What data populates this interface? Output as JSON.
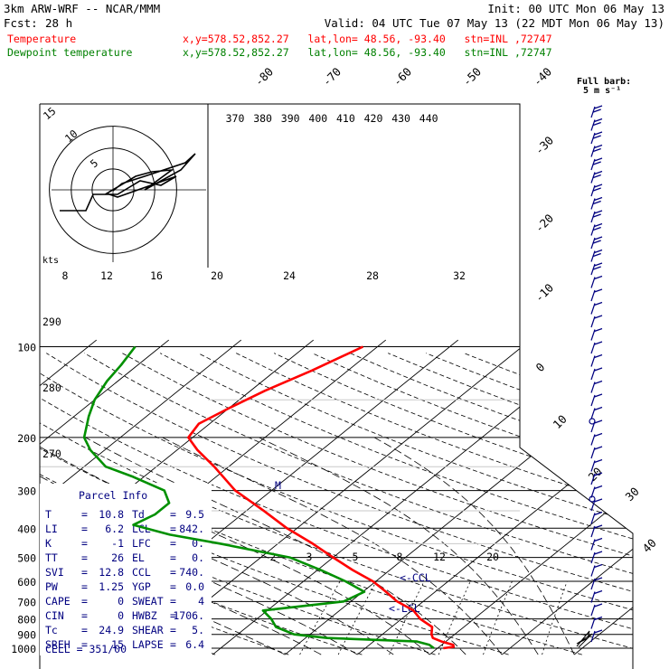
{
  "header": {
    "model": "3km ARW-WRF -- NCAR/MMM",
    "init": "Init: 00 UTC Mon 06 May 13",
    "fcst_label": "Fcst:",
    "fcst_value": "28 h",
    "valid": "Valid: 04 UTC Tue 07 May 13 (22 MDT Mon 06 May 13)"
  },
  "legend": [
    {
      "name": "Temperature",
      "info": "x,y=578.52,852.27   lat,lon= 48.56, -93.40   stn=INL ,72747",
      "color": "#ff0000"
    },
    {
      "name": "Dewpoint temperature",
      "info": "x,y=578.52,852.27   lat,lon= 48.56, -93.40   stn=INL ,72747",
      "color": "#008000"
    }
  ],
  "colors": {
    "temperature": "#ff0000",
    "dewpoint": "#009000",
    "barbs": "#000080",
    "grid": "#000000"
  },
  "chart_data": {
    "type": "line",
    "chart_kind": "skew-T log-P sounding",
    "pressure_levels": [
      "100",
      "200",
      "300",
      "400",
      "500",
      "600",
      "700",
      "800",
      "900",
      "1000"
    ],
    "isotherm_labels": [
      "-80",
      "-70",
      "-60",
      "-50",
      "-40",
      "-30",
      "-20",
      "-10",
      "0",
      "10",
      "20",
      "30",
      "40"
    ],
    "theta_labels": [
      "370",
      "380",
      "390",
      "400",
      "410",
      "420",
      "430",
      "440"
    ],
    "mixing_labels": [
      "2",
      "3",
      "5",
      "8",
      "12",
      "20"
    ],
    "left_labels": [
      "290",
      "280",
      "270"
    ],
    "hodograph": {
      "rings": [
        "5",
        "10",
        "15"
      ],
      "unit": "kts"
    },
    "hodo_axis": [
      "8",
      "12",
      "16",
      "20",
      "24",
      "28",
      "32"
    ],
    "barb_key": {
      "title": "Full barb:",
      "unit": "5 m s⁻¹"
    },
    "annotations": {
      "ccl": "<-CCL",
      "lcl": "<-LCL",
      "m": "M"
    },
    "series": [
      {
        "name": "Temperature",
        "points": [
          {
            "p": 1000,
            "t": 10.8
          },
          {
            "p": 990,
            "t": 12.0
          },
          {
            "p": 975,
            "t": 11.6
          },
          {
            "p": 950,
            "t": 9.4
          },
          {
            "p": 925,
            "t": 7.6
          },
          {
            "p": 900,
            "t": 6.8
          },
          {
            "p": 850,
            "t": 5.6
          },
          {
            "p": 800,
            "t": 2.6
          },
          {
            "p": 750,
            "t": 0.2
          },
          {
            "p": 700,
            "t": -3.6
          },
          {
            "p": 650,
            "t": -6.8
          },
          {
            "p": 600,
            "t": -10.4
          },
          {
            "p": 550,
            "t": -15.2
          },
          {
            "p": 500,
            "t": -20.0
          },
          {
            "p": 450,
            "t": -25.2
          },
          {
            "p": 400,
            "t": -31.4
          },
          {
            "p": 350,
            "t": -37.6
          },
          {
            "p": 300,
            "t": -45.0
          },
          {
            "p": 250,
            "t": -52.0
          },
          {
            "p": 220,
            "t": -57.2
          },
          {
            "p": 200,
            "t": -60.6
          },
          {
            "p": 180,
            "t": -61.5
          },
          {
            "p": 160,
            "t": -60.0
          },
          {
            "p": 140,
            "t": -58.0
          },
          {
            "p": 120,
            "t": -55.0
          },
          {
            "p": 100,
            "t": -52.0
          }
        ]
      },
      {
        "name": "Dewpoint temperature",
        "points": [
          {
            "p": 1000,
            "t": 9.5
          },
          {
            "p": 975,
            "t": 8.3
          },
          {
            "p": 950,
            "t": 6.0
          },
          {
            "p": 925,
            "t": -7.0
          },
          {
            "p": 900,
            "t": -12.2
          },
          {
            "p": 850,
            "t": -16.0
          },
          {
            "p": 800,
            "t": -18.0
          },
          {
            "p": 750,
            "t": -20.6
          },
          {
            "p": 700,
            "t": -11.0
          },
          {
            "p": 650,
            "t": -9.8
          },
          {
            "p": 600,
            "t": -14.2
          },
          {
            "p": 550,
            "t": -19.6
          },
          {
            "p": 500,
            "t": -26.0
          },
          {
            "p": 450,
            "t": -38.0
          },
          {
            "p": 420,
            "t": -46.5
          },
          {
            "p": 390,
            "t": -53.2
          },
          {
            "p": 360,
            "t": -52.0
          },
          {
            "p": 330,
            "t": -52.0
          },
          {
            "p": 300,
            "t": -54.8
          },
          {
            "p": 270,
            "t": -61.5
          },
          {
            "p": 250,
            "t": -67.0
          },
          {
            "p": 220,
            "t": -72.0
          },
          {
            "p": 200,
            "t": -75.0
          },
          {
            "p": 170,
            "t": -78.0
          },
          {
            "p": 150,
            "t": -80.0
          },
          {
            "p": 130,
            "t": -81.5
          },
          {
            "p": 115,
            "t": -82.3
          },
          {
            "p": 100,
            "t": -83.5
          }
        ]
      }
    ]
  },
  "parcel_info": {
    "title": "Parcel Info",
    "rows": [
      {
        "k1": "T",
        "v1": "10.8",
        "k2": "Td",
        "v2": "9.5"
      },
      {
        "k1": "LI",
        "v1": "6.2",
        "k2": "LCL",
        "v2": "842."
      },
      {
        "k1": "K",
        "v1": "-1",
        "k2": "LFC",
        "v2": "0."
      },
      {
        "k1": "TT",
        "v1": "26",
        "k2": "EL",
        "v2": "0."
      },
      {
        "k1": "SVI",
        "v1": "12.8",
        "k2": "CCL",
        "v2": "740."
      },
      {
        "k1": "PW",
        "v1": "1.25",
        "k2": "YGP",
        "v2": "0.0"
      },
      {
        "k1": "CAPE",
        "v1": "0",
        "k2": "SWEAT",
        "v2": "4"
      },
      {
        "k1": "CIN",
        "v1": "0",
        "k2": "HWBZ",
        "v2": "1706."
      },
      {
        "k1": "Tc",
        "v1": "24.9",
        "k2": "SHEAR",
        "v2": "5."
      },
      {
        "k1": "SREH",
        "v1": "15",
        "k2": "LAPSE",
        "v2": "6.4"
      }
    ],
    "cell_label": "CELL = 351/00"
  }
}
